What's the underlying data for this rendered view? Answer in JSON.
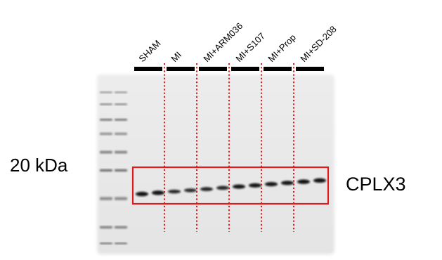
{
  "figure": {
    "marker_label": "20 kDa",
    "protein_label": "CPLX3",
    "lanes": [
      {
        "label": "SHAM",
        "band_intensity": 0.95
      },
      {
        "label": "MI",
        "band_intensity": 0.75
      },
      {
        "label": "MI+ARM036",
        "band_intensity": 0.8
      },
      {
        "label": "MI+S107",
        "band_intensity": 0.92
      },
      {
        "label": "MI+Prop",
        "band_intensity": 0.92
      },
      {
        "label": "MI+SD-208",
        "band_intensity": 0.95
      }
    ],
    "colors": {
      "membrane": "#e9e9e9",
      "band": "#0e0e0e",
      "ladder": "#4a4a4a",
      "highlight_box": "#e31a1c",
      "lane_divider": "#e31a1c",
      "lane_bar": "#000000"
    }
  }
}
